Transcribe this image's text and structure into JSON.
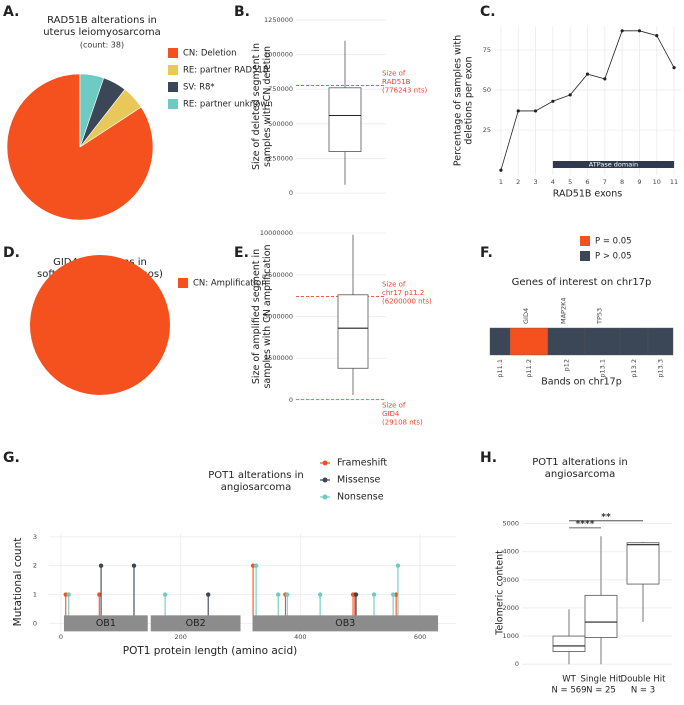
{
  "chart_data": [
    {
      "type": "pie",
      "panel": "A.",
      "title": [
        "RAD51B alterations in",
        "uterus leiomyosarcoma"
      ],
      "subtitle": "(count: 38)",
      "categories": [
        "CN: Deletion",
        "RE: partner RAD51B",
        "SV: R8*",
        "RE: partner unknown"
      ],
      "values": [
        32,
        2,
        2,
        2
      ],
      "colors": [
        "#f4511e",
        "#e8c85a",
        "#3b4656",
        "#6ecbc3"
      ]
    },
    {
      "type": "box",
      "panel": "B.",
      "ylabel": [
        "Size of deleted segment in",
        "samples with CN deletion"
      ],
      "ylim": [
        -50000,
        1300000
      ],
      "yticks": [
        0,
        250000,
        500000,
        750000,
        1000000,
        1250000
      ],
      "grid": true,
      "boxes": [
        {
          "min": 60000,
          "q1": 300000,
          "median": 560000,
          "q3": 760000,
          "max": 1100000
        }
      ],
      "reference_lines": [
        {
          "value": 776243,
          "label": [
            "Size of",
            "RAD51B",
            "(776243 nts)"
          ]
        }
      ],
      "reference_color": "#e8482c"
    },
    {
      "type": "line",
      "panel": "C.",
      "xlabel": "RAD51B exons",
      "ylabel": [
        "Percentage of samples with",
        "deletions per exon"
      ],
      "x": [
        1,
        2,
        3,
        4,
        5,
        6,
        7,
        8,
        9,
        10,
        11
      ],
      "values": [
        0,
        37,
        37,
        43,
        47,
        60,
        57,
        87,
        87,
        84,
        64
      ],
      "xlim": [
        0.6,
        11.4
      ],
      "xticks": [
        1,
        2,
        3,
        4,
        5,
        6,
        7,
        8,
        9,
        10,
        11
      ],
      "ylim": [
        -3,
        90
      ],
      "yticks": [
        25,
        50,
        75
      ],
      "grid": true,
      "color": "#222222",
      "domain": {
        "label": "ATPase domain",
        "start": 4,
        "end": 11,
        "color": "#2f3a4e"
      }
    },
    {
      "type": "pie",
      "panel": "D.",
      "title": [
        "GID4 alterations in",
        "soft tissue sarcoma (nos)"
      ],
      "subtitle": "(count: 83)",
      "categories": [
        "CN: Amplification"
      ],
      "values": [
        83
      ],
      "colors": [
        "#f4511e"
      ]
    },
    {
      "type": "box",
      "panel": "E.",
      "ylabel": [
        "Size of amplified segment in",
        "samples with CN amplification"
      ],
      "ylim": [
        -300000,
        10300000
      ],
      "yticks": [
        0,
        2500000,
        5000000,
        7500000,
        10000000
      ],
      "grid": true,
      "boxes": [
        {
          "min": 300000,
          "q1": 1900000,
          "median": 4300000,
          "q3": 6300000,
          "max": 9900000
        }
      ],
      "reference_lines": [
        {
          "value": 6200000,
          "label": [
            "Size of",
            "chr17 p11.2",
            "(6200000 nts)"
          ]
        },
        {
          "value": 29108,
          "label": [
            "Size of",
            "GID4",
            "(29108 nts)"
          ]
        }
      ],
      "reference_color": "#e8482c"
    },
    {
      "type": "band",
      "panel": "F.",
      "legend": [
        {
          "name": "P = 0.05",
          "color": "#f4511e"
        },
        {
          "name": "P > 0.05",
          "color": "#3b4656"
        }
      ],
      "title": "Genes of interest on chr17p",
      "xlabel": "Bands on chr17p",
      "categories": [
        "p11.1",
        "p11.2",
        "p12",
        "p13.1",
        "p13.2",
        "p13.3"
      ],
      "colors": [
        "#3b4656",
        "#f4511e",
        "#3b4656",
        "#3b4656",
        "#3b4656",
        "#3b4656"
      ],
      "gene_labels": [
        null,
        "GID4",
        "MAP2K4",
        "TP53",
        null,
        null
      ]
    },
    {
      "type": "lollipop",
      "panel": "G.",
      "title": [
        "POT1 alterations in",
        "angiosarcoma"
      ],
      "xlabel": "POT1 protein length (amino acid)",
      "ylabel": "Mutational count",
      "xlim": [
        -20,
        660
      ],
      "xticks": [
        0,
        200,
        400,
        600
      ],
      "ylim": [
        -0.3,
        3.1
      ],
      "yticks": [
        0,
        1,
        2,
        3
      ],
      "grid": true,
      "series": [
        {
          "name": "Frameshift",
          "color": "#f4511e",
          "x": [
            8,
            64,
            321,
            375,
            488,
            491,
            560
          ],
          "values": [
            1,
            1,
            2,
            1,
            1,
            1,
            1
          ]
        },
        {
          "name": "Missense",
          "color": "#3b4656",
          "x": [
            67,
            122,
            246,
            493
          ],
          "values": [
            2,
            2,
            1,
            1
          ]
        },
        {
          "name": "Nonsense",
          "color": "#6ecbc3",
          "x": [
            13,
            174,
            326,
            363,
            378,
            433,
            523,
            555,
            563
          ],
          "values": [
            1,
            1,
            2,
            1,
            1,
            1,
            1,
            1,
            2
          ]
        }
      ],
      "domains": [
        {
          "label": "OB1",
          "start": 5,
          "end": 145
        },
        {
          "label": "OB2",
          "start": 150,
          "end": 300
        },
        {
          "label": "OB3",
          "start": 320,
          "end": 630
        }
      ],
      "domain_color": "#8c8c8c"
    },
    {
      "type": "box",
      "panel": "H.",
      "title": [
        "POT1 alterations in",
        "angiosarcoma"
      ],
      "ylabel": [
        "Telomeric content"
      ],
      "categories": [
        "WT",
        "Single Hit",
        "Double Hit"
      ],
      "n_labels": [
        "N = 569",
        "N = 25",
        "N = 3"
      ],
      "ylim": [
        -100,
        5200
      ],
      "yticks": [
        0,
        1000,
        2000,
        3000,
        4000,
        5000
      ],
      "grid": true,
      "boxes": [
        {
          "min": 0,
          "q1": 450,
          "median": 650,
          "q3": 1000,
          "max": 1950
        },
        {
          "min": 0,
          "q1": 950,
          "median": 1500,
          "q3": 2450,
          "max": 4550
        },
        {
          "min": 1500,
          "q1": 2850,
          "median": 4250,
          "q3": 4320,
          "max": 4350
        }
      ],
      "significance": [
        {
          "label": "****",
          "from": 0,
          "to": 1,
          "y": 4850
        },
        {
          "label": "**",
          "from": 0,
          "to": 2,
          "y": 5100
        }
      ]
    }
  ]
}
